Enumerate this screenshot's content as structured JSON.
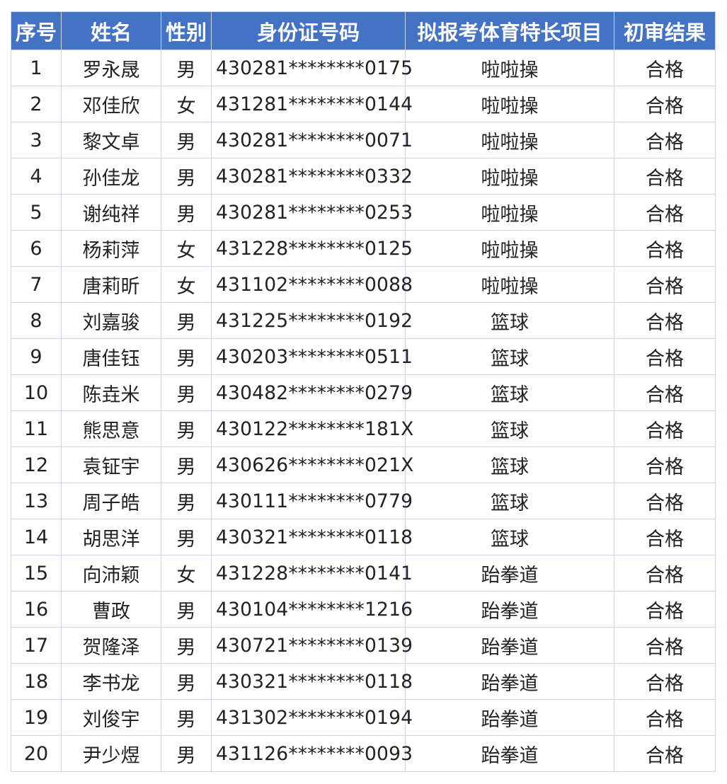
{
  "headers": [
    "序号",
    "姓名",
    "性别",
    "身份证号码",
    "拟报考体育特长项目",
    "初审结果"
  ],
  "header_color": "#4472C4",
  "rows": [
    [
      "1",
      "罗永晟",
      "男",
      "430281********0175",
      "啦啦操",
      "合格"
    ],
    [
      "2",
      "邓佳欣",
      "女",
      "431281********0144",
      "啦啦操",
      "合格"
    ],
    [
      "3",
      "黎文卓",
      "男",
      "430281********0071",
      "啦啦操",
      "合格"
    ],
    [
      "4",
      "孙佳龙",
      "男",
      "430281********0332",
      "啦啦操",
      "合格"
    ],
    [
      "5",
      "谢纯祥",
      "男",
      "430281********0253",
      "啦啦操",
      "合格"
    ],
    [
      "6",
      "杨莉萍",
      "女",
      "431228********0125",
      "啦啦操",
      "合格"
    ],
    [
      "7",
      "唐莉昕",
      "女",
      "431102********0088",
      "啦啦操",
      "合格"
    ],
    [
      "8",
      "刘嘉骏",
      "男",
      "431225********0192",
      "篮球",
      "合格"
    ],
    [
      "9",
      "唐佳钰",
      "男",
      "430203********0511",
      "篮球",
      "合格"
    ],
    [
      "10",
      "陈垚米",
      "男",
      "430482********0279",
      "篮球",
      "合格"
    ],
    [
      "11",
      "熊思意",
      "男",
      "430122********181X",
      "篮球",
      "合格"
    ],
    [
      "12",
      "袁钲宇",
      "男",
      "430626********021X",
      "篮球",
      "合格"
    ],
    [
      "13",
      "周子皓",
      "男",
      "430111********0779",
      "篮球",
      "合格"
    ],
    [
      "14",
      "胡思洋",
      "男",
      "430321********0118",
      "篮球",
      "合格"
    ],
    [
      "15",
      "向沛颖",
      "女",
      "431228********0141",
      "跆拳道",
      "合格"
    ],
    [
      "16",
      "曹政",
      "男",
      "430104********1216",
      "跆拳道",
      "合格"
    ],
    [
      "17",
      "贺隆泽",
      "男",
      "430721********0139",
      "跆拳道",
      "合格"
    ],
    [
      "18",
      "李书龙",
      "男",
      "430321********0118",
      "跆拳道",
      "合格"
    ],
    [
      "19",
      "刘俊宇",
      "男",
      "431302********0194",
      "跆拳道",
      "合格"
    ],
    [
      "20",
      "尹少煜",
      "男",
      "431126********0093",
      "跆拳道",
      "合格"
    ]
  ]
}
